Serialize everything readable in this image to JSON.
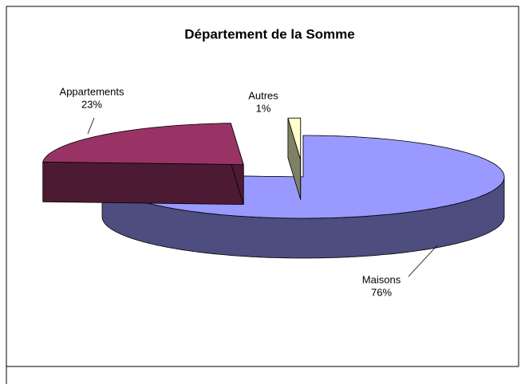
{
  "chart_data": {
    "type": "pie3d",
    "title": "Département de la Somme",
    "categories": [
      "Maisons",
      "Appartements",
      "Autres"
    ],
    "values": [
      76,
      23,
      1
    ],
    "value_labels": [
      "76%",
      "23%",
      "1%"
    ],
    "colors": [
      "#9999ff",
      "#993366",
      "#ffffcc"
    ]
  }
}
